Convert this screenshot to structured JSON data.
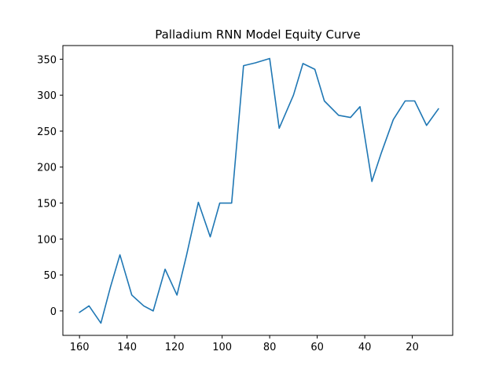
{
  "chart_data": {
    "type": "line",
    "title": "Palladium RNN Model Equity Curve",
    "xlabel": "",
    "ylabel": "",
    "x_axis_inverted": true,
    "xlim": [
      167,
      3
    ],
    "ylim": [
      -34,
      369
    ],
    "xticks": [
      160,
      140,
      120,
      100,
      80,
      60,
      40,
      20
    ],
    "yticks": [
      0,
      50,
      100,
      150,
      200,
      250,
      300,
      350
    ],
    "grid": false,
    "line_color": "#1f77b4",
    "series": [
      {
        "x": [
          160,
          156,
          151,
          147,
          143,
          138,
          133,
          129,
          124,
          119,
          115,
          110,
          105,
          101,
          96,
          91,
          86,
          80,
          76,
          70,
          66,
          61,
          57,
          51,
          46,
          42,
          37,
          33,
          28,
          23,
          19,
          14,
          9
        ],
        "values": [
          -2,
          7,
          -17,
          33,
          78,
          22,
          7,
          0,
          58,
          22,
          77,
          151,
          103,
          150,
          150,
          341,
          345,
          351,
          254,
          300,
          344,
          336,
          292,
          272,
          269,
          284,
          180,
          220,
          266,
          292,
          292,
          258,
          281
        ]
      }
    ]
  }
}
